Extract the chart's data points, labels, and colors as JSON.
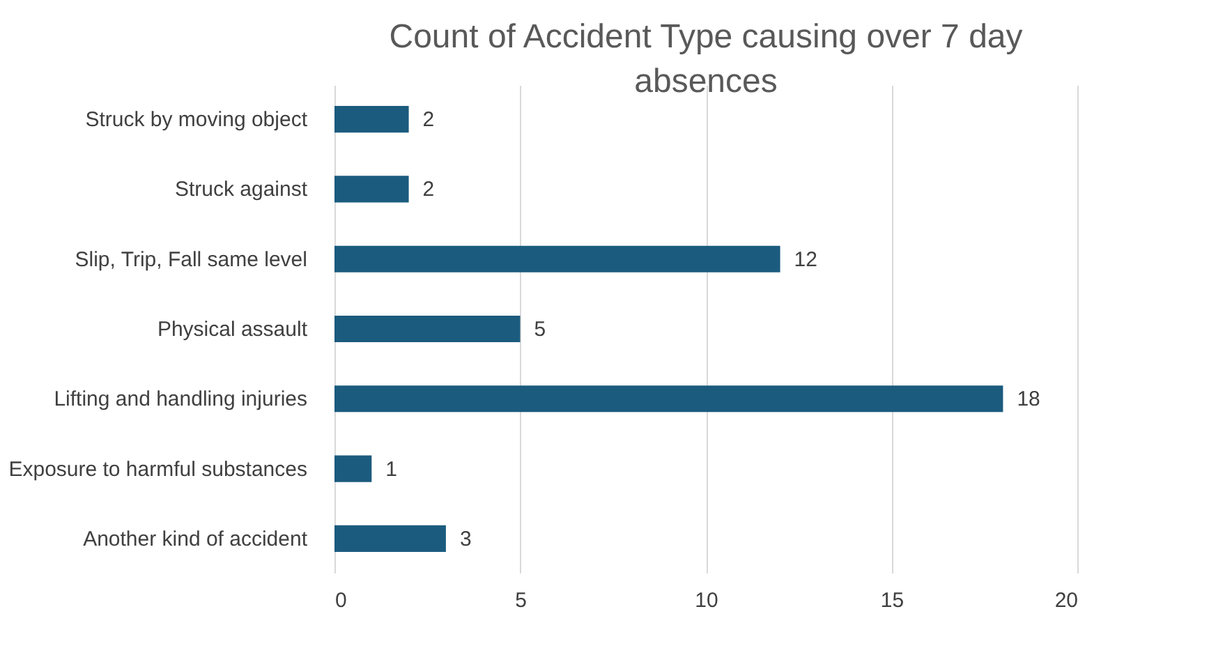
{
  "chart_data": {
    "type": "bar",
    "orientation": "horizontal",
    "title": "Count of Accident Type causing over 7 day absences",
    "categories": [
      "Struck by moving object",
      "Struck against",
      "Slip, Trip, Fall same level",
      "Physical assault",
      "Lifting and handling injuries",
      "Exposure to harmful substances",
      "Another kind of accident"
    ],
    "values": [
      2,
      2,
      12,
      5,
      18,
      1,
      3
    ],
    "color": "#1b5b7e",
    "xlim": [
      0,
      20
    ],
    "xticks": [
      0,
      5,
      10,
      15,
      20
    ],
    "grid": "x",
    "data_labels": true
  }
}
